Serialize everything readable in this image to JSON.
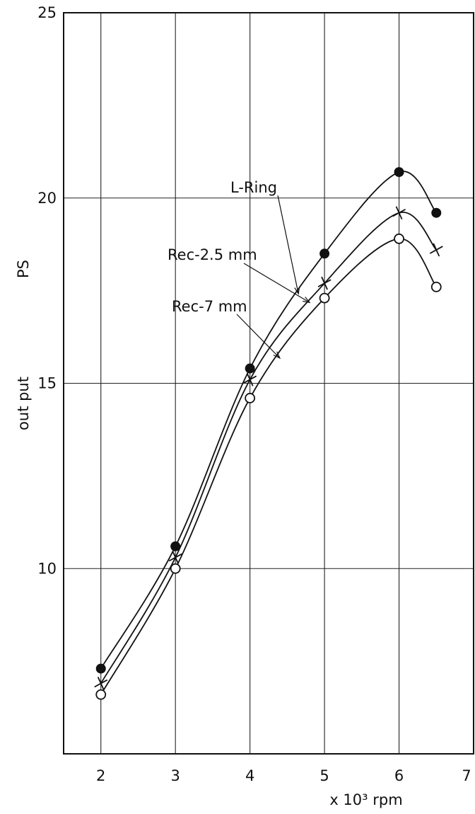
{
  "chart_data": {
    "type": "line",
    "title": "",
    "xlabel": "x 10³ rpm",
    "ylabel": [
      "out put",
      "PS"
    ],
    "xlim": [
      1.5,
      7
    ],
    "ylim": [
      5,
      25
    ],
    "x_ticks": [
      2,
      3,
      4,
      5,
      6,
      7
    ],
    "y_ticks": [
      10,
      15,
      20,
      25
    ],
    "grid": true,
    "series": [
      {
        "name": "L-Ring",
        "marker": "filled-circle",
        "x": [
          2,
          3,
          4,
          5,
          6,
          6.5
        ],
        "values": [
          7.3,
          10.6,
          15.4,
          18.5,
          20.7,
          19.6
        ]
      },
      {
        "name": "Rec-2.5 mm",
        "marker": "x",
        "x": [
          2,
          3,
          4,
          5,
          6,
          6.5
        ],
        "values": [
          6.9,
          10.3,
          15.1,
          17.7,
          19.6,
          18.6
        ]
      },
      {
        "name": "Rec-7 mm",
        "marker": "open-circle",
        "x": [
          2,
          3,
          4,
          5,
          6,
          6.5
        ],
        "values": [
          6.6,
          10.0,
          14.6,
          17.3,
          18.9,
          17.6
        ]
      }
    ]
  }
}
